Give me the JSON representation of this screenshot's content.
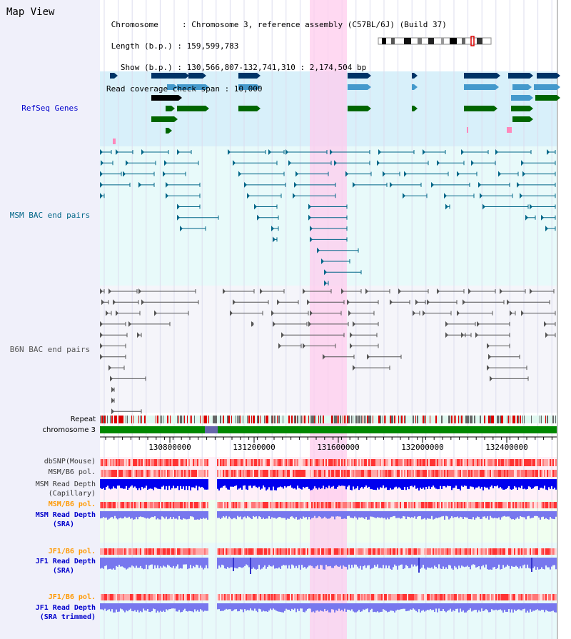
{
  "title": "Map View",
  "info": {
    "lines": [
      " Chromosome     : Chromosome 3, reference assembly (C57BL/6J) (Build 37)",
      " Length (b.p.) : 159,599,783",
      "   Show (b.p.) : 130,566,807-132,741,310 : 2,174,504 bp",
      "Read coverage check span : 10,000"
    ]
  },
  "tracks": {
    "refseq": {
      "label": "RefSeq Genes",
      "color": "#0000cc",
      "bg": "#d8f0fa"
    },
    "msm_bac": {
      "label": "MSM BAC end pairs",
      "color": "#006688",
      "bg": "#e8fafa"
    },
    "b6n_bac": {
      "label": "B6N BAC end pairs",
      "color": "#444444",
      "bg": "#f5f5fa"
    },
    "repeat": {
      "label": "Repeat"
    },
    "chromosome": {
      "label": "chromosome 3",
      "color": "#008800"
    },
    "dbsnp": {
      "label": "dbSNP(Mouse)"
    },
    "msm_b6_pol": {
      "label": "MSM/B6 pol."
    },
    "msm_read_depth_cap": {
      "label1": "MSM Read Depth",
      "label2": "(Capillary)"
    },
    "msm_b6_pol_sra": {
      "label": "MSM/B6 pol.",
      "color": "#ff9900"
    },
    "msm_read_depth_sra": {
      "label1": "MSM Read Depth",
      "label2": "(SRA)",
      "color": "#0000cc"
    },
    "jf1_b6_pol": {
      "label": "JF1/B6 pol.",
      "color": "#ff9900"
    },
    "jf1_read_depth_sra": {
      "label1": "JF1 Read Depth",
      "label2": "(SRA)",
      "color": "#0000cc"
    },
    "jf1_b6_pol_2": {
      "label": "JF1/B6 pol.",
      "color": "#ff9900"
    },
    "jf1_read_depth_trim": {
      "label1": "JF1 Read Depth",
      "label2": "(SRA trimmed)",
      "color": "#0000cc"
    }
  },
  "axis": {
    "ticks": [
      "130800000",
      "131200000",
      "131600000",
      "132000000",
      "132400000"
    ]
  },
  "colors": {
    "highlight": "#ffccee",
    "refseq_dark": "#003366",
    "refseq_light": "#4499cc",
    "refseq_green": "#006600",
    "pink_marker": "#ff88bb",
    "snp_red": "#ff4444",
    "depth_blue": "#0000ee",
    "depth_light": "#7777ee"
  }
}
